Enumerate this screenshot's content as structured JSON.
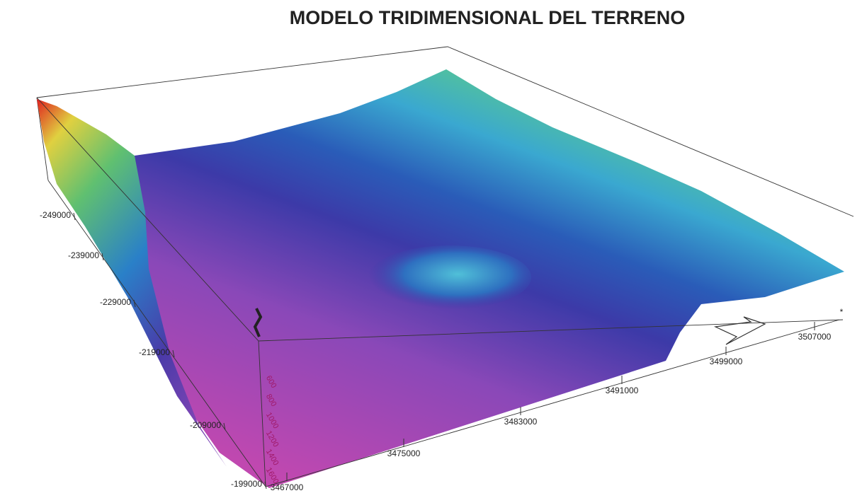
{
  "title": "MODELO TRIDIMENSIONAL DEL TERRENO",
  "left_axis": {
    "labels": [
      "-249000",
      "-239000",
      "-229000",
      "-219000",
      "-209000",
      "-199000"
    ]
  },
  "bottom_axis": {
    "labels": [
      "3467000",
      "3475000",
      "3483000",
      "3491000",
      "3499000",
      "3507000"
    ]
  },
  "depth_axis": {
    "labels": [
      "600",
      "800",
      "1000",
      "1200",
      "1400",
      "1600"
    ]
  }
}
